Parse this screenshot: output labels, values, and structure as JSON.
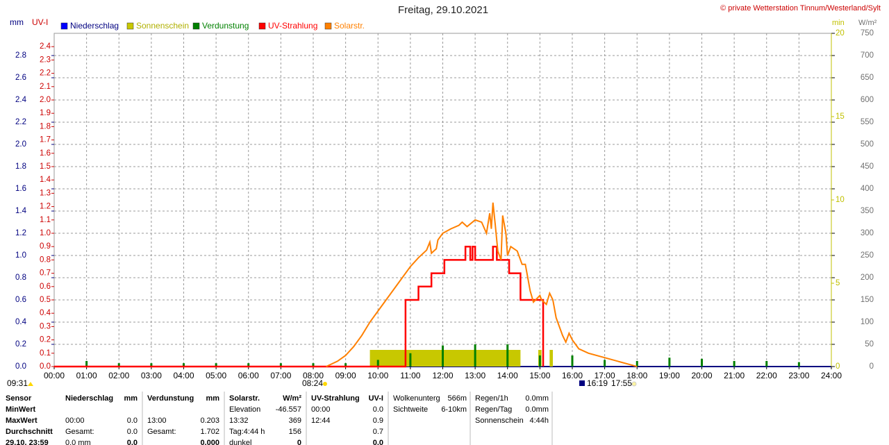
{
  "chart_data": {
    "type": "line",
    "title": "Freitag, 29.10.2021",
    "credit": "© private Wetterstation Tinnum/Westerland/Sylt",
    "xlim": [
      0,
      24
    ],
    "xticks": [
      {
        "value": 0,
        "label": "00:00"
      },
      {
        "value": 1,
        "label": "01:00"
      },
      {
        "value": 2,
        "label": "02:00"
      },
      {
        "value": 3,
        "label": "03:00"
      },
      {
        "value": 4,
        "label": "04:00"
      },
      {
        "value": 5,
        "label": "05:00"
      },
      {
        "value": 6,
        "label": "06:00"
      },
      {
        "value": 7,
        "label": "07:00"
      },
      {
        "value": 8,
        "label": "08:00"
      },
      {
        "value": 9,
        "label": "09:00"
      },
      {
        "value": 10,
        "label": "10:00"
      },
      {
        "value": 11,
        "label": "11:00"
      },
      {
        "value": 12,
        "label": "12:00"
      },
      {
        "value": 13,
        "label": "13:00"
      },
      {
        "value": 14,
        "label": "14:00"
      },
      {
        "value": 15,
        "label": "15:00"
      },
      {
        "value": 16,
        "label": "16:00"
      },
      {
        "value": 17,
        "label": "17:00"
      },
      {
        "value": 18,
        "label": "18:00"
      },
      {
        "value": 19,
        "label": "19:00"
      },
      {
        "value": 20,
        "label": "20:00"
      },
      {
        "value": 21,
        "label": "21:00"
      },
      {
        "value": 22,
        "label": "22:00"
      },
      {
        "value": 23,
        "label": "23:00"
      },
      {
        "value": 24,
        "label": "24:00"
      }
    ],
    "grid": true,
    "y_axes": [
      {
        "label": "mm",
        "color": "#000080",
        "lim": [
          0,
          3
        ],
        "ticks": [
          {
            "value": 0,
            "label": "0.0"
          },
          0.2,
          0.4,
          0.6,
          0.8,
          {
            "value": 1,
            "label": "1.0"
          },
          1.2,
          1.4,
          1.6,
          1.8,
          {
            "value": 2,
            "label": "2.0"
          },
          2.2,
          2.4,
          2.6,
          2.8
        ]
      },
      {
        "label": "UV-I",
        "color": "#cc0000",
        "lim": [
          0,
          2.5
        ],
        "ticks": [
          {
            "value": 0,
            "label": "0.0"
          },
          0.1,
          0.2,
          0.3,
          0.4,
          0.5,
          0.6,
          0.7,
          0.8,
          0.9,
          {
            "value": 1,
            "label": "1.0"
          },
          1.1,
          1.2,
          1.3,
          1.4,
          1.5,
          1.6,
          1.7,
          1.8,
          1.9,
          {
            "value": 2,
            "label": "2.0"
          },
          2.1,
          2.2,
          2.3,
          2.4
        ]
      },
      {
        "label": "min",
        "color": "#c0c000",
        "lim": [
          0,
          20
        ],
        "ticks": [
          0,
          5,
          10,
          15,
          20
        ]
      },
      {
        "label": "W/m²",
        "color": "#707070",
        "lim": [
          0,
          750
        ],
        "ticks": [
          0,
          50,
          100,
          150,
          200,
          250,
          300,
          350,
          400,
          450,
          500,
          550,
          600,
          650,
          700,
          750
        ]
      }
    ],
    "series": [
      {
        "name": "Niederschlag",
        "color": "#0000ff",
        "axis": 0,
        "type": "spike"
      },
      {
        "name": "Sonnenschein",
        "color": "#c8c800",
        "axis": 2,
        "type": "span",
        "x_start": [
          9.75,
          14.95,
          15.3
        ],
        "x_end": [
          14.4,
          15.05,
          15.4
        ],
        "values": [
          1,
          1,
          1
        ]
      },
      {
        "name": "Verdunstung",
        "color": "#008000",
        "axis": 0,
        "type": "spike",
        "x": [
          1,
          2,
          3,
          4,
          5,
          6,
          7,
          8,
          9,
          10,
          11,
          12,
          13,
          14,
          15,
          16,
          17,
          18,
          19,
          20,
          21,
          22,
          23
        ],
        "values": [
          0.05,
          0.03,
          0.03,
          0.03,
          0.03,
          0.03,
          0.03,
          0.03,
          0.03,
          0.06,
          0.12,
          0.19,
          0.2,
          0.2,
          0.1,
          0.1,
          0.06,
          0.05,
          0.08,
          0.07,
          0.05,
          0.05,
          0.04
        ]
      },
      {
        "name": "UV-Strahlung",
        "color": "#ff0000",
        "axis": 1,
        "type": "step",
        "x": [
          0,
          10.85,
          11.25,
          11.65,
          12.05,
          12.7,
          12.85,
          12.92,
          13.0,
          13.55,
          13.67,
          14.05,
          14.4,
          15.1
        ],
        "values": [
          0,
          0.5,
          0.6,
          0.7,
          0.8,
          0.9,
          0.8,
          0.9,
          0.8,
          0.9,
          0.8,
          0.7,
          0.5,
          0
        ]
      },
      {
        "name": "Solarstr.",
        "color": "#ff8000",
        "axis": 3,
        "type": "line",
        "x": [
          8.4,
          8.75,
          9.0,
          9.25,
          9.5,
          9.75,
          10.0,
          10.25,
          10.5,
          10.75,
          11.0,
          11.25,
          11.5,
          11.6,
          11.65,
          11.8,
          11.85,
          12.0,
          12.25,
          12.5,
          12.6,
          12.75,
          13.0,
          13.2,
          13.35,
          13.45,
          13.5,
          13.55,
          13.62,
          13.7,
          13.8,
          13.85,
          13.95,
          14.0,
          14.1,
          14.3,
          14.45,
          14.55,
          14.7,
          14.8,
          15.0,
          15.05,
          15.2,
          15.3,
          15.4,
          15.5,
          15.7,
          15.8,
          15.9,
          16.0,
          16.2,
          16.5,
          17.0,
          17.5,
          17.9,
          18.0
        ],
        "values": [
          0,
          12,
          25,
          45,
          70,
          100,
          125,
          150,
          175,
          200,
          225,
          245,
          262,
          280,
          255,
          265,
          285,
          300,
          310,
          318,
          325,
          315,
          330,
          325,
          300,
          345,
          310,
          369,
          320,
          260,
          240,
          340,
          300,
          250,
          270,
          260,
          230,
          230,
          170,
          145,
          160,
          150,
          140,
          165,
          150,
          110,
          70,
          55,
          75,
          60,
          40,
          30,
          20,
          10,
          2,
          0
        ]
      }
    ],
    "markers": [
      "09:31",
      "08:24",
      "16:19",
      "17:55"
    ]
  },
  "stats": [
    {
      "rows": [
        [
          "Sensor"
        ],
        [
          "MinWert"
        ],
        [
          "MaxWert"
        ],
        [
          "Durchschnitt"
        ],
        [
          "29.10. 23:59"
        ]
      ]
    },
    {
      "rows": [
        [
          "Niederschlag",
          "mm"
        ],
        [
          null,
          null
        ],
        [
          "00:00",
          "0.0"
        ],
        [
          "Gesamt:",
          "0.0"
        ],
        [
          "0.0 mm",
          "0.0"
        ]
      ]
    },
    {
      "rows": [
        [
          "Verdunstung",
          "mm"
        ],
        [
          null,
          null
        ],
        [
          "13:00",
          "0.203"
        ],
        [
          "Gesamt:",
          "1.702"
        ],
        [
          null,
          "0.000"
        ]
      ]
    },
    {
      "rows": [
        [
          "Solarstr.",
          "W/m²"
        ],
        [
          "Elevation",
          "-46.557"
        ],
        [
          "13:32",
          "369"
        ],
        [
          "Tag:4:44 h",
          "156"
        ],
        [
          "dunkel",
          "0"
        ]
      ]
    },
    {
      "rows": [
        [
          "UV-Strahlung",
          "UV-I"
        ],
        [
          "00:00",
          "0.0"
        ],
        [
          "12:44",
          "0.9"
        ],
        [
          null,
          "0.7"
        ],
        [
          null,
          "0.0"
        ]
      ]
    },
    {
      "rows": [
        [
          "Wolkenunterg",
          "566m"
        ],
        [
          "Sichtweite",
          "6-10km"
        ]
      ]
    },
    {
      "rows": [
        [
          "Regen/1h",
          "0.0mm"
        ],
        [
          "Regen/Tag",
          "0.0mm"
        ],
        [
          "Sonnenschein",
          "4:44h"
        ]
      ]
    }
  ]
}
